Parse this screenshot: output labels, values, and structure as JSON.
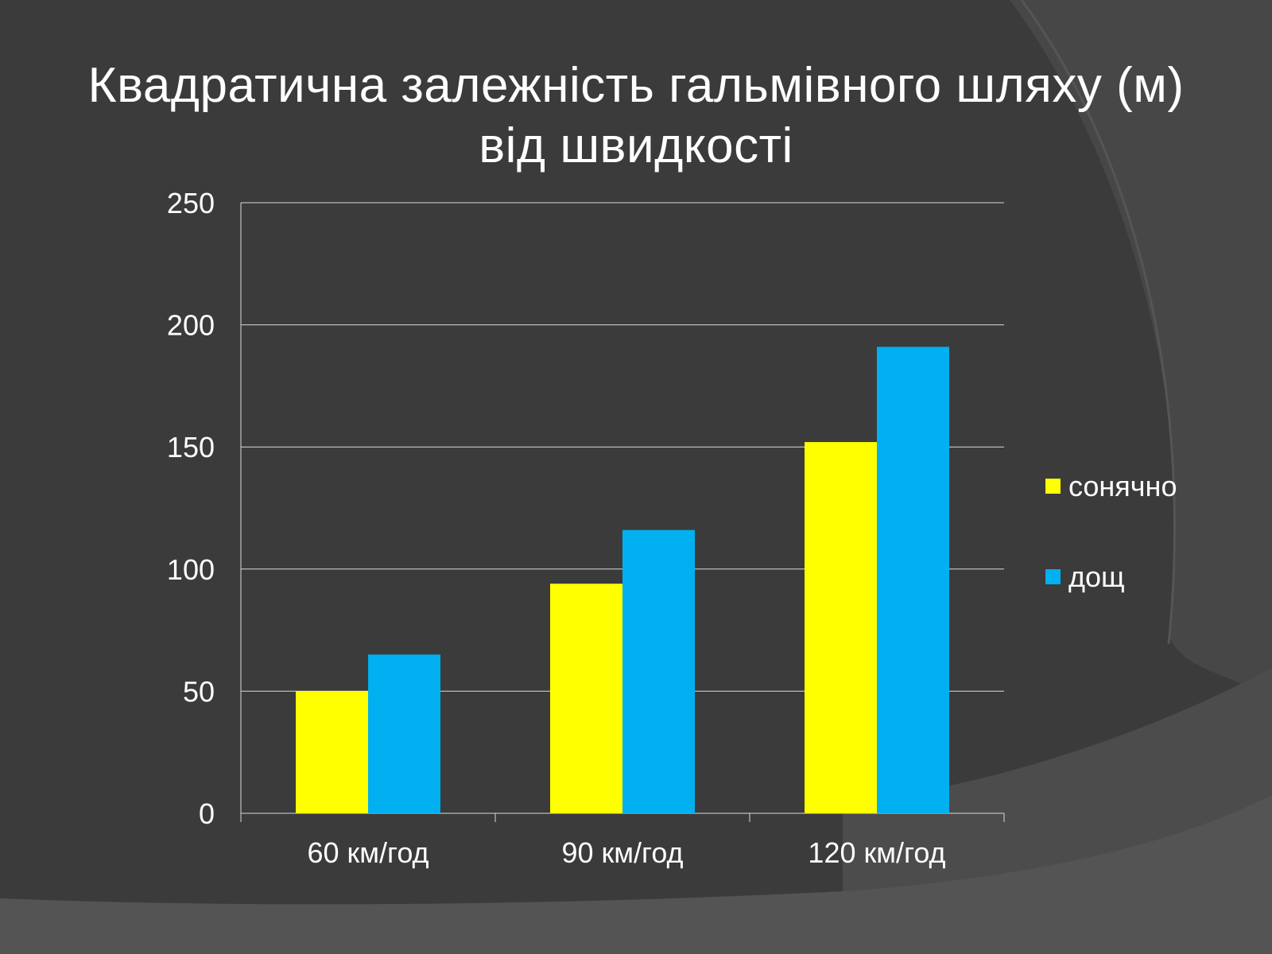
{
  "slide": {
    "title_lines": [
      "Квадратична залежність гальмівного шляху (м)",
      "від швидкості"
    ]
  },
  "chart_data": {
    "type": "bar",
    "title": "Квадратична залежність гальмівного шляху (м) від швидкості",
    "categories": [
      "60 км/год",
      "90 км/год",
      "120 км/год"
    ],
    "series": [
      {
        "name": "сонячно",
        "values": [
          50,
          94,
          152
        ],
        "color": "#ffff00"
      },
      {
        "name": "дощ",
        "values": [
          65,
          116,
          191
        ],
        "color": "#00b0f0"
      }
    ],
    "ylim": [
      0,
      250
    ],
    "yticks": [
      0,
      50,
      100,
      150,
      200,
      250
    ],
    "grid": true,
    "legend": "right",
    "xlabel": "",
    "ylabel": ""
  }
}
